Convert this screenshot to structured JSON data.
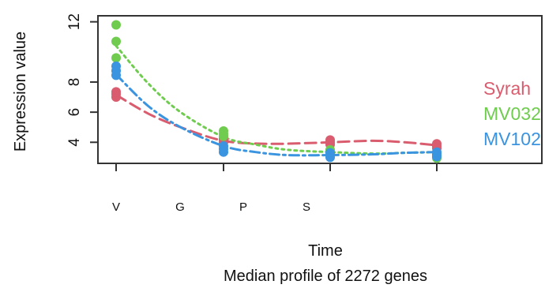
{
  "chart_data": {
    "type": "line",
    "xlabel": "Time",
    "subtitle": "Median profile of 2272 genes",
    "ylabel": "Expression value",
    "x_tick_labels": [
      "V",
      "G",
      "P",
      "S"
    ],
    "y_ticks": [
      4,
      6,
      8,
      12
    ],
    "ylim": [
      2.6,
      12.4
    ],
    "stages": [
      1,
      2,
      3,
      4
    ],
    "series": [
      {
        "name": "Syrah",
        "color": "#d95d6e",
        "dash": "long-dash",
        "curve": [
          [
            1,
            7.15
          ],
          [
            1.3,
            5.9
          ],
          [
            1.6,
            5.0
          ],
          [
            2,
            4.1
          ],
          [
            2.4,
            3.9
          ],
          [
            2.8,
            3.95
          ],
          [
            3,
            4.0
          ],
          [
            3.4,
            4.1
          ],
          [
            3.7,
            4.0
          ],
          [
            4,
            3.8
          ]
        ],
        "points": [
          [
            1,
            7.0
          ],
          [
            1,
            7.2
          ],
          [
            1,
            7.35
          ],
          [
            2,
            4.0
          ],
          [
            2,
            4.15
          ],
          [
            2,
            4.25
          ],
          [
            3,
            3.85
          ],
          [
            3,
            4.0
          ],
          [
            3,
            4.15
          ],
          [
            4,
            3.6
          ],
          [
            4,
            3.75
          ],
          [
            4,
            3.9
          ]
        ]
      },
      {
        "name": "MV032",
        "color": "#6fcc4f",
        "dash": "dotted",
        "curve": [
          [
            1,
            10.4
          ],
          [
            1.3,
            7.9
          ],
          [
            1.6,
            6.0
          ],
          [
            2,
            4.35
          ],
          [
            2.3,
            3.85
          ],
          [
            2.6,
            3.5
          ],
          [
            3,
            3.35
          ],
          [
            3.4,
            3.25
          ],
          [
            3.7,
            3.3
          ],
          [
            4,
            3.35
          ]
        ],
        "points": [
          [
            1,
            9.6
          ],
          [
            1,
            10.7
          ],
          [
            1,
            11.8
          ],
          [
            2,
            4.4
          ],
          [
            2,
            4.55
          ],
          [
            2,
            4.75
          ],
          [
            3,
            3.2
          ],
          [
            3,
            3.35
          ],
          [
            3,
            3.5
          ],
          [
            4,
            2.95
          ],
          [
            4,
            3.1
          ],
          [
            4,
            3.25
          ]
        ]
      },
      {
        "name": "MV102",
        "color": "#3a94e0",
        "dash": "dash-dot",
        "curve": [
          [
            1,
            8.5
          ],
          [
            1.3,
            6.4
          ],
          [
            1.6,
            5.0
          ],
          [
            2,
            3.75
          ],
          [
            2.3,
            3.35
          ],
          [
            2.6,
            3.15
          ],
          [
            3,
            3.15
          ],
          [
            3.4,
            3.2
          ],
          [
            3.7,
            3.3
          ],
          [
            4,
            3.35
          ]
        ],
        "points": [
          [
            1,
            8.45
          ],
          [
            1,
            8.75
          ],
          [
            1,
            9.05
          ],
          [
            2,
            3.35
          ],
          [
            2,
            3.55
          ],
          [
            2,
            3.75
          ],
          [
            3,
            3.0
          ],
          [
            3,
            3.15
          ],
          [
            3,
            3.3
          ],
          [
            4,
            3.05
          ],
          [
            4,
            3.2
          ],
          [
            4,
            3.35
          ]
        ]
      }
    ]
  }
}
